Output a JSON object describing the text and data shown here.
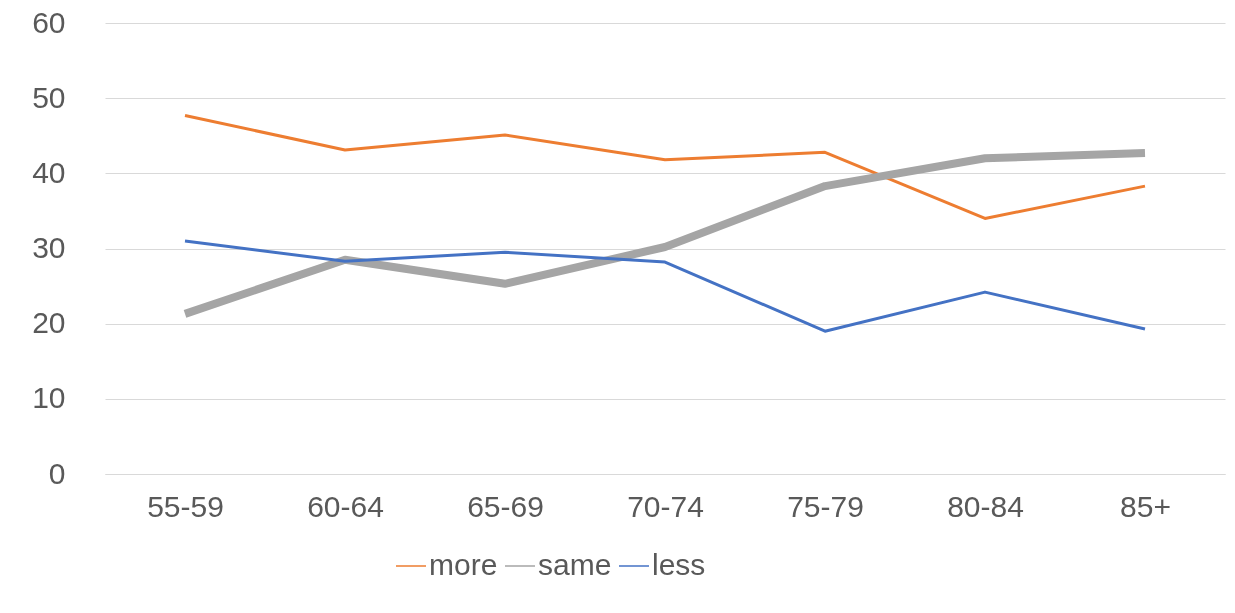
{
  "chart_data": {
    "type": "line",
    "categories": [
      "55-59",
      "60-64",
      "65-69",
      "70-74",
      "75-79",
      "80-84",
      "85+"
    ],
    "series": [
      {
        "name": "more",
        "color": "#ed7d31",
        "values": [
          47.7,
          43.1,
          45.1,
          41.8,
          42.8,
          34.0,
          38.3
        ]
      },
      {
        "name": "same",
        "color": "#a5a5a5",
        "values": [
          21.3,
          28.5,
          25.3,
          30.2,
          38.3,
          42.0,
          42.7
        ]
      },
      {
        "name": "less",
        "color": "#4472c4",
        "values": [
          31.0,
          28.3,
          29.5,
          28.2,
          19.0,
          24.2,
          19.3
        ]
      }
    ],
    "ylim": [
      0,
      60
    ],
    "yticks": [
      0,
      10,
      20,
      30,
      40,
      50,
      60
    ],
    "grid": "y",
    "legend": "bottom",
    "marker": "none",
    "line_style": "solid"
  }
}
